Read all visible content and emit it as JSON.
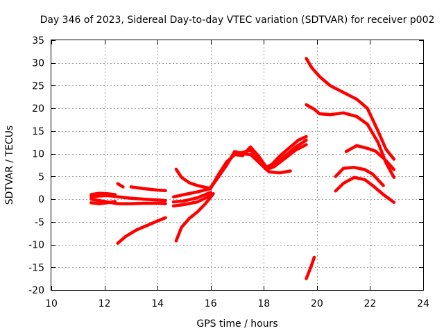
{
  "chart_data": {
    "type": "line",
    "title": "Day 346 of 2023, Sidereal Day-to-day VTEC variation (SDTVAR) for receiver p002",
    "xlabel": "GPS time / hours",
    "ylabel": "SDTVAR / TECUs",
    "xlim": [
      10,
      24
    ],
    "ylim": [
      -20,
      35
    ],
    "xticks": [
      10,
      12,
      14,
      16,
      18,
      20,
      22,
      24
    ],
    "yticks": [
      -20,
      -15,
      -10,
      -5,
      0,
      5,
      10,
      15,
      20,
      25,
      30,
      35
    ],
    "grid": true,
    "color": "#ff0000",
    "series": [
      {
        "x": [
          11.5,
          11.8,
          12.1,
          12.4,
          12.7,
          13.0,
          13.5,
          14.0,
          14.3
        ],
        "y": [
          0.5,
          0.7,
          0.8,
          0.6,
          0.4,
          0.2,
          0.0,
          -0.2,
          -0.3
        ]
      },
      {
        "x": [
          11.5,
          11.8,
          12.1,
          12.5,
          13.0,
          13.5,
          14.0,
          14.3
        ],
        "y": [
          0.0,
          -0.3,
          -0.6,
          -1.0,
          -1.0,
          -0.9,
          -0.9,
          -1.0
        ]
      },
      {
        "x": [
          11.5,
          11.8,
          12.1,
          12.4
        ],
        "y": [
          1.0,
          1.3,
          1.2,
          1.0
        ]
      },
      {
        "x": [
          11.5,
          11.8,
          12.1,
          12.4
        ],
        "y": [
          -0.8,
          -1.0,
          -0.8,
          -0.5
        ]
      },
      {
        "x": [
          12.5,
          12.7
        ],
        "y": [
          3.4,
          2.7
        ]
      },
      {
        "x": [
          13.0,
          13.5,
          14.0,
          14.3
        ],
        "y": [
          2.7,
          2.3,
          2.0,
          1.9
        ]
      },
      {
        "x": [
          12.5,
          12.8,
          13.2,
          13.6,
          14.0,
          14.3
        ],
        "y": [
          -9.7,
          -8.2,
          -6.8,
          -5.8,
          -4.8,
          -4.1
        ]
      },
      {
        "x": [
          14.7,
          14.9,
          15.2,
          15.5,
          15.8,
          16.0
        ],
        "y": [
          6.6,
          4.8,
          3.6,
          3.0,
          2.6,
          2.4
        ]
      },
      {
        "x": [
          14.7,
          14.9,
          15.2,
          15.5,
          15.8,
          16.1
        ],
        "y": [
          -9.2,
          -6.2,
          -4.2,
          -2.8,
          -1.0,
          1.2
        ]
      },
      {
        "x": [
          14.6,
          15.0,
          15.5,
          16.0
        ],
        "y": [
          -0.6,
          -0.4,
          0.3,
          1.5
        ]
      },
      {
        "x": [
          14.6,
          15.0,
          15.5,
          16.0
        ],
        "y": [
          0.5,
          1.0,
          1.6,
          2.3
        ]
      },
      {
        "x": [
          14.6,
          15.0,
          15.5,
          16.0
        ],
        "y": [
          -1.5,
          -1.2,
          -0.6,
          0.8
        ]
      },
      {
        "x": [
          16.0,
          16.3,
          16.6,
          16.9,
          17.2,
          17.5,
          17.8,
          18.0,
          18.2,
          18.6,
          19.0
        ],
        "y": [
          2.5,
          5.0,
          7.8,
          10.0,
          10.3,
          10.8,
          9.0,
          7.2,
          6.0,
          5.8,
          6.2
        ]
      },
      {
        "x": [
          16.0,
          16.3,
          16.6,
          16.9,
          17.2,
          17.5,
          17.8,
          18.1,
          18.4,
          18.8,
          19.2,
          19.6
        ],
        "y": [
          2.4,
          5.5,
          8.2,
          9.8,
          9.6,
          11.5,
          9.5,
          7.0,
          8.0,
          9.5,
          11.5,
          13.0
        ]
      },
      {
        "x": [
          16.0,
          16.3,
          16.6,
          16.9,
          17.2,
          17.5,
          17.8,
          18.1,
          18.4,
          18.8,
          19.2,
          19.6
        ],
        "y": [
          2.6,
          5.0,
          7.5,
          10.5,
          10.0,
          9.8,
          8.2,
          6.5,
          7.2,
          9.0,
          10.8,
          12.0
        ]
      },
      {
        "x": [
          18.2,
          18.6,
          19.0,
          19.3,
          19.6
        ],
        "y": [
          7.0,
          9.5,
          11.5,
          13.0,
          13.8
        ]
      },
      {
        "x": [
          19.6,
          19.8,
          20.1,
          20.5,
          21.0,
          21.5,
          21.9,
          22.3,
          22.6,
          22.9
        ],
        "y": [
          31.0,
          29.0,
          27.0,
          25.0,
          23.5,
          22.0,
          20.0,
          15.0,
          11.0,
          8.8
        ]
      },
      {
        "x": [
          19.6,
          19.9,
          20.1,
          20.5,
          21.0,
          21.5,
          21.9,
          22.3,
          22.6,
          22.9
        ],
        "y": [
          20.8,
          19.8,
          18.8,
          18.6,
          19.0,
          18.2,
          16.5,
          12.5,
          8.0,
          4.8
        ]
      },
      {
        "x": [
          20.7,
          21.0,
          21.4,
          21.8,
          22.1,
          22.5
        ],
        "y": [
          5.0,
          6.8,
          7.0,
          6.5,
          5.5,
          3.0
        ]
      },
      {
        "x": [
          20.7,
          21.0,
          21.4,
          21.8,
          22.1,
          22.5,
          22.9
        ],
        "y": [
          1.8,
          3.5,
          4.8,
          4.3,
          3.0,
          1.0,
          -0.7
        ]
      },
      {
        "x": [
          21.1,
          21.5,
          21.9,
          22.2,
          22.6,
          22.9
        ],
        "y": [
          10.5,
          11.8,
          11.2,
          10.6,
          8.5,
          6.5
        ]
      },
      {
        "x": [
          19.6,
          19.7,
          19.8,
          19.9
        ],
        "y": [
          -17.5,
          -16.0,
          -14.5,
          -12.8
        ]
      }
    ]
  }
}
